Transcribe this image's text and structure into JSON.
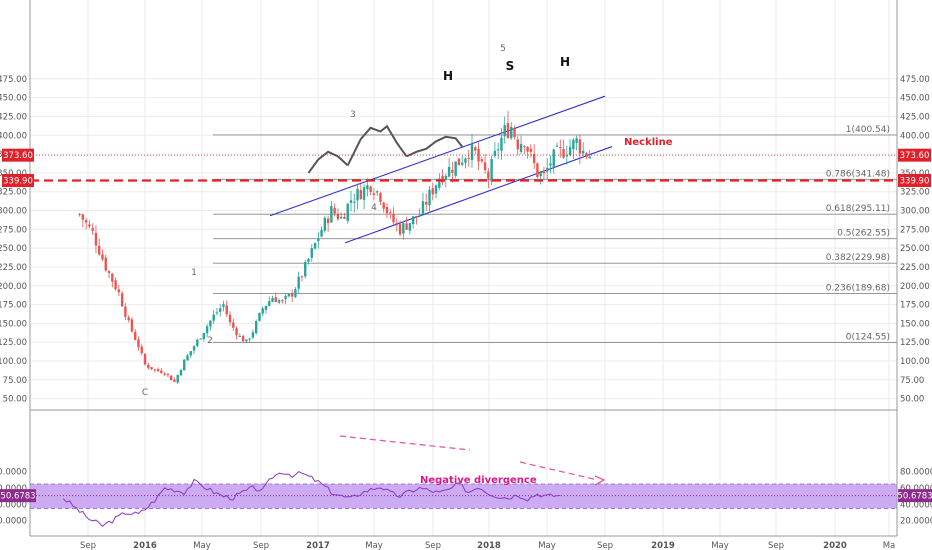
{
  "colors": {
    "up": "#26a69a",
    "down": "#ef5350",
    "channel": "#3030c8",
    "fib": "#888888",
    "neckline": "#e3202a",
    "hs_curve": "#555555",
    "rsi_line": "#8d35c4",
    "rsi_band": "#c39cf0",
    "rsi_tag": "#8d2a8d",
    "price_tag": "#e0202a",
    "divergence": "#e05aa8",
    "current_price_line": "#e0202a",
    "grid": "#ebebeb"
  },
  "x_axis": {
    "labels": [
      "Sep",
      "2016",
      "May",
      "Sep",
      "2017",
      "May",
      "Sep",
      "2018",
      "May",
      "Sep",
      "2019",
      "May",
      "Sep",
      "2020",
      "Ma"
    ]
  },
  "price_axis": {
    "ticks": [
      "475.00",
      "450.00",
      "425.00",
      "400.00",
      "375.00",
      "350.00",
      "325.00",
      "300.00",
      "275.00",
      "250.00",
      "225.00",
      "200.00",
      "175.00",
      "150.00",
      "125.00",
      "100.00",
      "75.00",
      "50.00"
    ]
  },
  "rsi_axis": {
    "ticks": [
      "80.0000",
      "60.0000",
      "40.0000",
      "20.0000"
    ]
  },
  "price_tags": {
    "current": "373.60",
    "neckline": "339.90"
  },
  "rsi_tag": "50.6783",
  "fib_levels": [
    {
      "label": "1(400.54)",
      "value": 400.54
    },
    {
      "label": "0.786(341.48)",
      "value": 341.48
    },
    {
      "label": "0.618(295.11)",
      "value": 295.11
    },
    {
      "label": "0.5(262.55)",
      "value": 262.55
    },
    {
      "label": "0.382(229.98)",
      "value": 229.98
    },
    {
      "label": "0.236(189.68)",
      "value": 189.68
    },
    {
      "label": "0(124.55)",
      "value": 124.55
    }
  ],
  "wave_labels": [
    "C",
    "1",
    "2",
    "3",
    "4",
    "5"
  ],
  "pattern_labels": [
    "H",
    "S",
    "H"
  ],
  "annotations": {
    "neckline": "Neckline",
    "divergence": "Negative divergence"
  },
  "chart_data": {
    "type": "candlestick",
    "price_range": [
      38,
      485
    ],
    "rsi_range": [
      2,
      90
    ],
    "rsi_band": [
      35,
      65
    ],
    "rsi_midline": 50.68,
    "current_price": 373.6,
    "neckline_price": 339.9,
    "weekly_close_path": [
      [
        -20,
        295
      ],
      [
        -16,
        270
      ],
      [
        -12,
        225
      ],
      [
        -8,
        190
      ],
      [
        -5,
        150
      ],
      [
        -2,
        120
      ],
      [
        0,
        95
      ],
      [
        3,
        88
      ],
      [
        6,
        85
      ],
      [
        9,
        72
      ],
      [
        12,
        100
      ],
      [
        15,
        120
      ],
      [
        18,
        140
      ],
      [
        21,
        160
      ],
      [
        24,
        175
      ],
      [
        26,
        150
      ],
      [
        29,
        132
      ],
      [
        31,
        125
      ],
      [
        33,
        140
      ],
      [
        36,
        170
      ],
      [
        39,
        185
      ],
      [
        42,
        178
      ],
      [
        45,
        190
      ],
      [
        48,
        215
      ],
      [
        51,
        245
      ],
      [
        54,
        275
      ],
      [
        57,
        300
      ],
      [
        60,
        290
      ],
      [
        63,
        315
      ],
      [
        66,
        325
      ],
      [
        69,
        335
      ],
      [
        72,
        320
      ],
      [
        75,
        290
      ],
      [
        78,
        275
      ],
      [
        81,
        285
      ],
      [
        84,
        295
      ],
      [
        87,
        320
      ],
      [
        90,
        345
      ],
      [
        93,
        355
      ],
      [
        96,
        365
      ],
      [
        99,
        380
      ],
      [
        101,
        375
      ],
      [
        103,
        355
      ],
      [
        105,
        345
      ],
      [
        108,
        385
      ],
      [
        110,
        405
      ],
      [
        112,
        412
      ],
      [
        114,
        390
      ],
      [
        116,
        395
      ],
      [
        118,
        370
      ],
      [
        120,
        350
      ],
      [
        122,
        345
      ],
      [
        124,
        365
      ],
      [
        126,
        375
      ],
      [
        128,
        380
      ],
      [
        130,
        385
      ],
      [
        132,
        392
      ],
      [
        134,
        378
      ],
      [
        136,
        374
      ]
    ],
    "rsi_path": [
      [
        -25,
        48
      ],
      [
        -21,
        35
      ],
      [
        -17,
        22
      ],
      [
        -13,
        14
      ],
      [
        -10,
        20
      ],
      [
        -6,
        30
      ],
      [
        -2,
        28
      ],
      [
        0,
        34
      ],
      [
        3,
        45
      ],
      [
        6,
        60
      ],
      [
        9,
        58
      ],
      [
        12,
        55
      ],
      [
        15,
        68
      ],
      [
        18,
        62
      ],
      [
        21,
        55
      ],
      [
        24,
        50
      ],
      [
        27,
        48
      ],
      [
        30,
        55
      ],
      [
        33,
        60
      ],
      [
        36,
        57
      ],
      [
        39,
        74
      ],
      [
        42,
        80
      ],
      [
        45,
        76
      ],
      [
        48,
        78
      ],
      [
        51,
        72
      ],
      [
        54,
        65
      ],
      [
        57,
        55
      ],
      [
        60,
        50
      ],
      [
        63,
        47
      ],
      [
        66,
        54
      ],
      [
        69,
        58
      ],
      [
        72,
        62
      ],
      [
        75,
        54
      ],
      [
        78,
        50
      ],
      [
        81,
        56
      ],
      [
        84,
        60
      ],
      [
        87,
        57
      ],
      [
        90,
        54
      ],
      [
        93,
        58
      ],
      [
        96,
        65
      ],
      [
        99,
        55
      ],
      [
        102,
        62
      ],
      [
        105,
        54
      ],
      [
        108,
        50
      ],
      [
        111,
        48
      ],
      [
        114,
        52
      ],
      [
        117,
        47
      ],
      [
        120,
        53
      ],
      [
        123,
        50
      ],
      [
        126,
        51
      ],
      [
        128,
        50
      ]
    ]
  }
}
